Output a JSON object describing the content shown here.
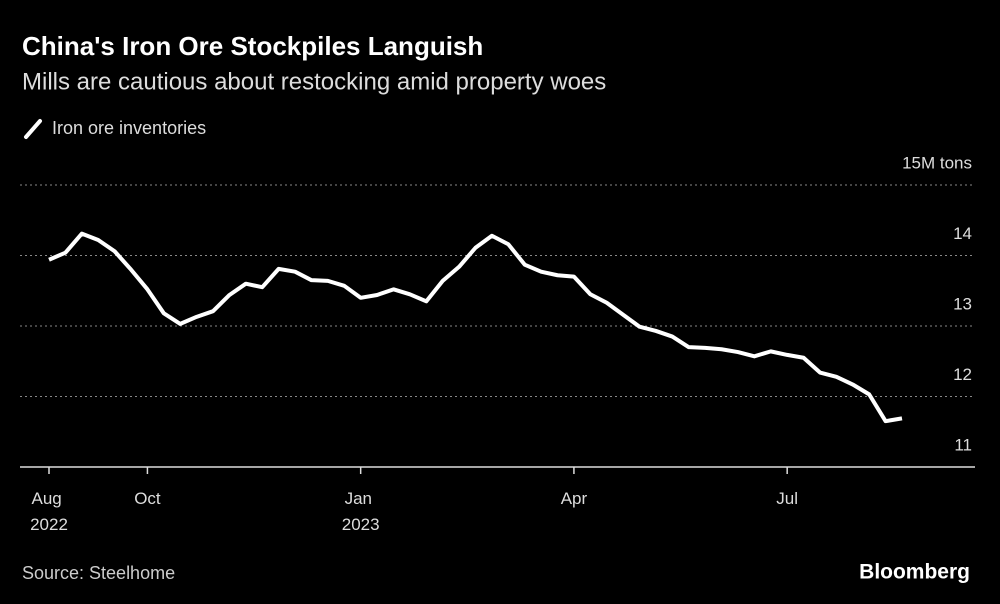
{
  "chart_data": {
    "type": "line",
    "title": "China's Iron Ore Stockpiles Languish",
    "subtitle": "Mills are cautious about restocking amid property woes",
    "source": "Source: Steelhome",
    "brand": "Bloomberg",
    "categories": [
      "Aug 2022",
      null,
      null,
      null,
      null,
      null,
      "Oct",
      null,
      null,
      null,
      null,
      null,
      null,
      null,
      null,
      null,
      null,
      null,
      null,
      "Jan 2023",
      null,
      null,
      null,
      null,
      null,
      null,
      null,
      null,
      null,
      null,
      null,
      null,
      "Apr",
      null,
      null,
      null,
      null,
      null,
      null,
      null,
      null,
      null,
      null,
      null,
      null,
      "Jul",
      null,
      null,
      null,
      null,
      null,
      null,
      null
    ],
    "series": [
      {
        "name": "Iron ore inventories",
        "color": "#ffffff",
        "values": [
          13.94,
          14.04,
          14.31,
          14.22,
          14.06,
          13.8,
          13.52,
          13.18,
          13.03,
          13.13,
          13.21,
          13.44,
          13.6,
          13.55,
          13.81,
          13.77,
          13.65,
          13.64,
          13.57,
          13.4,
          13.44,
          13.52,
          13.45,
          13.35,
          13.64,
          13.84,
          14.11,
          14.28,
          14.16,
          13.87,
          13.77,
          13.72,
          13.7,
          13.45,
          13.33,
          13.16,
          12.99,
          12.93,
          12.85,
          12.7,
          12.69,
          12.67,
          12.63,
          12.57,
          12.64,
          12.59,
          12.55,
          12.34,
          12.28,
          12.17,
          12.03,
          11.65,
          11.69
        ]
      }
    ],
    "ylim": [
      11,
      15
    ],
    "yticks": [
      11,
      12,
      13,
      14,
      {
        "value": 15,
        "label": "15M tons"
      }
    ],
    "grid": true
  }
}
